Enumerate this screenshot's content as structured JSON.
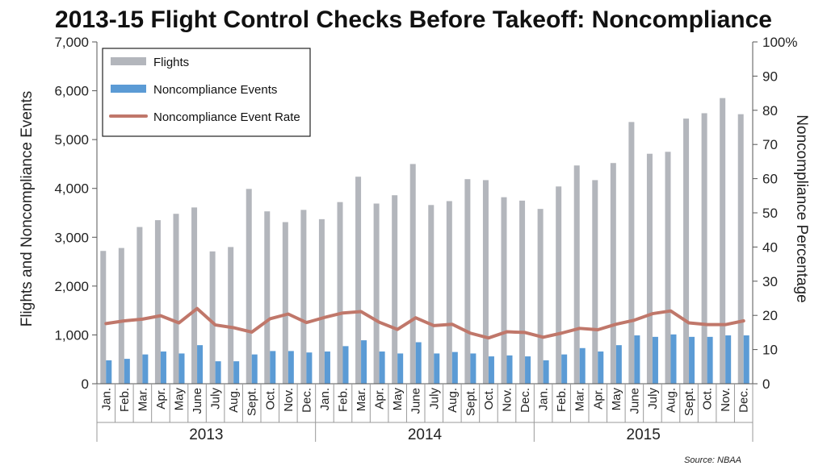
{
  "chart_data": {
    "type": "bar",
    "title": "2013-15 Flight Control Checks Before Takeoff: Noncompliance",
    "ylabel_left": "Flights and Noncompliance Events",
    "ylabel_right": "Noncompliance Percentage",
    "ylim_left": [
      0,
      7000
    ],
    "ylim_right": [
      0,
      100
    ],
    "yticks_left": [
      "0",
      "1,000",
      "2,000",
      "3,000",
      "4,000",
      "5,000",
      "6,000",
      "7,000"
    ],
    "yticks_right": [
      "0",
      "10",
      "20",
      "30",
      "40",
      "50",
      "60",
      "70",
      "80",
      "90",
      "100%"
    ],
    "years": [
      "2013",
      "2014",
      "2015"
    ],
    "months": [
      "Jan.",
      "Feb.",
      "Mar.",
      "Apr.",
      "May",
      "June",
      "July",
      "Aug.",
      "Sept.",
      "Oct.",
      "Nov.",
      "Dec."
    ],
    "categories": [
      "Jan. 2013",
      "Feb. 2013",
      "Mar. 2013",
      "Apr. 2013",
      "May 2013",
      "June 2013",
      "July 2013",
      "Aug. 2013",
      "Sept. 2013",
      "Oct. 2013",
      "Nov. 2013",
      "Dec. 2013",
      "Jan. 2014",
      "Feb. 2014",
      "Mar. 2014",
      "Apr. 2014",
      "May 2014",
      "June 2014",
      "July 2014",
      "Aug. 2014",
      "Sept. 2014",
      "Oct. 2014",
      "Nov. 2014",
      "Dec. 2014",
      "Jan. 2015",
      "Feb. 2015",
      "Mar. 2015",
      "Apr. 2015",
      "May 2015",
      "June 2015",
      "July 2015",
      "Aug. 2015",
      "Sept. 2015",
      "Oct. 2015",
      "Nov. 2015",
      "Dec. 2015"
    ],
    "series": [
      {
        "name": "Flights",
        "axis": "left",
        "color": "#b3b6bc",
        "values": [
          2720,
          2780,
          3210,
          3350,
          3480,
          3610,
          2710,
          2800,
          3990,
          3530,
          3310,
          3560,
          3370,
          3720,
          4240,
          3690,
          3860,
          4500,
          3660,
          3740,
          4190,
          4170,
          3820,
          3750,
          3580,
          4040,
          4470,
          4170,
          4520,
          5360,
          4710,
          4750,
          5430,
          5540,
          5850,
          5520
        ]
      },
      {
        "name": "Noncompliance Events",
        "axis": "left",
        "color": "#5b9bd5",
        "values": [
          480,
          510,
          600,
          660,
          620,
          790,
          460,
          460,
          600,
          670,
          670,
          640,
          660,
          770,
          890,
          660,
          620,
          850,
          620,
          650,
          620,
          560,
          580,
          560,
          480,
          600,
          730,
          660,
          790,
          990,
          960,
          1010,
          960,
          960,
          990,
          990
        ]
      },
      {
        "name": "Noncompliance Event Rate",
        "axis": "right",
        "type": "line",
        "color": "#c0776a",
        "values": [
          17.6,
          18.4,
          18.9,
          19.9,
          17.8,
          22.0,
          17.2,
          16.4,
          15.1,
          19.0,
          20.4,
          17.9,
          19.4,
          20.7,
          21.1,
          18.0,
          15.9,
          19.3,
          17.0,
          17.4,
          14.8,
          13.4,
          15.2,
          15.0,
          13.6,
          14.8,
          16.2,
          15.8,
          17.4,
          18.6,
          20.5,
          21.3,
          17.8,
          17.3,
          17.3,
          18.4
        ]
      }
    ],
    "legend_position": "top-left",
    "source": "Source: NBAA"
  }
}
